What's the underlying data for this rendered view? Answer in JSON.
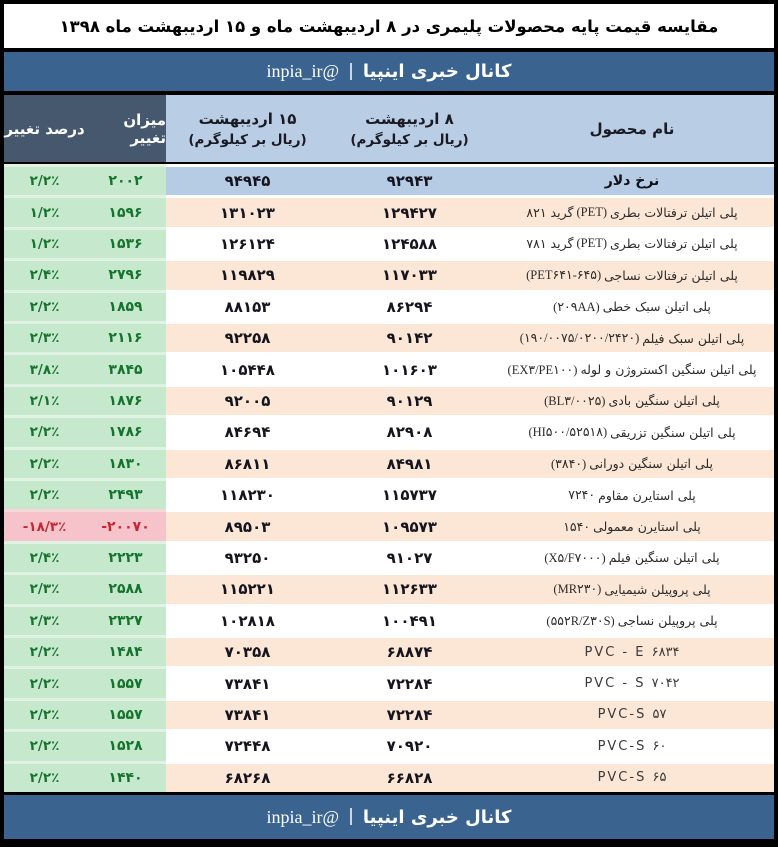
{
  "title": "مقایسه قیمت پایه محصولات پلیمری در ۸ اردیبهشت ماه و ۱۵ اردیبهشت ماه ۱۳۹۸",
  "banner": {
    "channel_fa": "کانال خبری اینپیا",
    "divider": "|",
    "handle": "@inpia_ir"
  },
  "columns": {
    "product": "نام محصول",
    "date8": "۸ اردیبهشت",
    "date15": "۱۵ اردیبهشت",
    "unit": "(ریال بر کیلوگرم)",
    "amount_change": "میزان تغییر",
    "percent_change": "درصد تغییر"
  },
  "colors": {
    "banner_blue": "#3a648f",
    "header_dark": "#46586e",
    "header_light_blue": "#b9cde5",
    "dollar_row_blue": "#b6cbe4",
    "row_peach": "#fce6d5",
    "positive_bg": "#c6e9ce",
    "positive_text": "#15732e",
    "negative_bg": "#f5c3c9",
    "negative_text": "#c42833"
  },
  "rows": [
    {
      "name_fa": "نرخ دلار",
      "code": "",
      "tail": "",
      "v8": "۹۲۹۴۳",
      "v15": "۹۴۹۴۵",
      "chg": "۲۰۰۲",
      "pct": "۲/۲٪",
      "dollar": true
    },
    {
      "name_fa": "پلی اتیلن ترفتالات بطری",
      "code": "(PET)",
      "tail": "گرید ۸۲۱",
      "v8": "۱۲۹۴۲۷",
      "v15": "۱۳۱۰۲۳",
      "chg": "۱۵۹۶",
      "pct": "۱/۲٪"
    },
    {
      "name_fa": "پلی اتیلن ترفتالات بطری",
      "code": "(PET)",
      "tail": "گرید ۷۸۱",
      "v8": "۱۲۴۵۸۸",
      "v15": "۱۲۶۱۲۴",
      "chg": "۱۵۳۶",
      "pct": "۱/۲٪"
    },
    {
      "name_fa": "پلی اتیلن ترفتالات نساجی",
      "code": "(PET۶۴۱-۶۴۵)",
      "tail": "",
      "v8": "۱۱۷۰۳۳",
      "v15": "۱۱۹۸۲۹",
      "chg": "۲۷۹۶",
      "pct": "۲/۴٪"
    },
    {
      "name_fa": "پلی اتیلن سبک خطی",
      "code": "(۲۰۹AA)",
      "tail": "",
      "v8": "۸۶۲۹۴",
      "v15": "۸۸۱۵۳",
      "chg": "۱۸۵۹",
      "pct": "۲/۲٪"
    },
    {
      "name_fa": "پلی اتیلن سبک فیلم",
      "code": "(۱۹۰/۰۰۷۵/۰۲۰۰/۲۴۲۰)",
      "tail": "",
      "v8": "۹۰۱۴۲",
      "v15": "۹۲۲۵۸",
      "chg": "۲۱۱۶",
      "pct": "۲/۳٪"
    },
    {
      "name_fa": "پلی اتیلن سنگین اکستروژن و لوله",
      "code": "(EX۳/PE۱۰۰)",
      "tail": "",
      "v8": "۱۰۱۶۰۳",
      "v15": "۱۰۵۴۴۸",
      "chg": "۳۸۴۵",
      "pct": "۳/۸٪"
    },
    {
      "name_fa": "پلی اتیلن سنگین بادی",
      "code": "(BL۳/۰۰۲۵)",
      "tail": "",
      "v8": "۹۰۱۲۹",
      "v15": "۹۲۰۰۵",
      "chg": "۱۸۷۶",
      "pct": "۲/۱٪"
    },
    {
      "name_fa": "پلی اتیلن سنگین تزریقی",
      "code": "(HI۵۰۰/۵۲۵۱۸)",
      "tail": "",
      "v8": "۸۲۹۰۸",
      "v15": "۸۴۶۹۴",
      "chg": "۱۷۸۶",
      "pct": "۲/۲٪"
    },
    {
      "name_fa": "پلی اتیلن سنگین دورانی",
      "code": "(۳۸۴۰)",
      "tail": "",
      "v8": "۸۴۹۸۱",
      "v15": "۸۶۸۱۱",
      "chg": "۱۸۳۰",
      "pct": "۲/۲٪"
    },
    {
      "name_fa": "پلی استایرن مقاوم",
      "code": "۷۲۴۰",
      "tail": "",
      "v8": "۱۱۵۷۳۷",
      "v15": "۱۱۸۲۳۰",
      "chg": "۲۴۹۳",
      "pct": "۲/۲٪"
    },
    {
      "name_fa": "پلی استایرن معمولی",
      "code": "۱۵۴۰",
      "tail": "",
      "v8": "۱۰۹۵۷۳",
      "v15": "۸۹۵۰۳",
      "chg": "-۲۰۰۷۰",
      "pct": "-۱۸/۳٪",
      "negative": true
    },
    {
      "name_fa": "پلی اتیلن سنگین فیلم",
      "code": "(X۵/F۷۰۰۰)",
      "tail": "",
      "v8": "۹۱۰۲۷",
      "v15": "۹۳۲۵۰",
      "chg": "۲۲۲۳",
      "pct": "۲/۴٪"
    },
    {
      "name_fa": "پلی پروپیلن شیمیایی",
      "code": "(MR۲۳۰)",
      "tail": "",
      "v8": "۱۱۲۶۳۳",
      "v15": "۱۱۵۲۲۱",
      "chg": "۲۵۸۸",
      "pct": "۲/۳٪"
    },
    {
      "name_fa": "پلی پروپیلن نساجی",
      "code": "(۵۵۲R/Z۳۰S)",
      "tail": "",
      "v8": "۱۰۰۴۹۱",
      "v15": "۱۰۲۸۱۸",
      "chg": "۲۳۲۷",
      "pct": "۲/۳٪"
    },
    {
      "name_fa": "",
      "code": "PVC - E ۶۸۳۴",
      "tail": "",
      "pvc": true,
      "v8": "۶۸۸۷۴",
      "v15": "۷۰۳۵۸",
      "chg": "۱۴۸۴",
      "pct": "۲/۲٪"
    },
    {
      "name_fa": "",
      "code": "PVC - S ۷۰۴۲",
      "tail": "",
      "pvc": true,
      "v8": "۷۲۲۸۴",
      "v15": "۷۳۸۴۱",
      "chg": "۱۵۵۷",
      "pct": "۲/۲٪"
    },
    {
      "name_fa": "",
      "code": "PVC-S ۵۷",
      "tail": "",
      "pvc": true,
      "v8": "۷۲۲۸۴",
      "v15": "۷۳۸۴۱",
      "chg": "۱۵۵۷",
      "pct": "۲/۲٪"
    },
    {
      "name_fa": "",
      "code": "PVC-S ۶۰",
      "tail": "",
      "pvc": true,
      "v8": "۷۰۹۲۰",
      "v15": "۷۲۴۴۸",
      "chg": "۱۵۲۸",
      "pct": "۲/۲٪"
    },
    {
      "name_fa": "",
      "code": "PVC-S ۶۵",
      "tail": "",
      "pvc": true,
      "v8": "۶۶۸۲۸",
      "v15": "۶۸۲۶۸",
      "chg": "۱۴۴۰",
      "pct": "۲/۲٪"
    }
  ],
  "chart_data": {
    "type": "table",
    "title": "مقایسه قیمت پایه محصولات پلیمری در ۸ اردیبهشت ماه و ۱۵ اردیبهشت ماه ۱۳۹۸",
    "columns": [
      "نام محصول",
      "۸ اردیبهشت (ریال بر کیلوگرم)",
      "۱۵ اردیبهشت (ریال بر کیلوگرم)",
      "میزان تغییر",
      "درصد تغییر"
    ],
    "rows": [
      [
        "نرخ دلار",
        92943,
        94945,
        2002,
        2.2
      ],
      [
        "پلی اتیلن ترفتالات بطری (PET) گرید ۸۲۱",
        129427,
        131023,
        1596,
        1.2
      ],
      [
        "پلی اتیلن ترفتالات بطری (PET) گرید ۷۸۱",
        124588,
        126124,
        1536,
        1.2
      ],
      [
        "پلی اتیلن ترفتالات نساجی (PET641-645)",
        117033,
        119829,
        2796,
        2.4
      ],
      [
        "پلی اتیلن سبک خطی (209AA)",
        86294,
        88153,
        1859,
        2.2
      ],
      [
        "پلی اتیلن سبک فیلم (190/0075/0200/2420)",
        90142,
        92258,
        2116,
        2.3
      ],
      [
        "پلی اتیلن سنگین اکستروژن و لوله (EX3/PE100)",
        101603,
        105448,
        3845,
        3.8
      ],
      [
        "پلی اتیلن سنگین بادی (BL3/0025)",
        90129,
        92005,
        1876,
        2.1
      ],
      [
        "پلی اتیلن سنگین تزریقی (HI500/52518)",
        82908,
        84694,
        1786,
        2.2
      ],
      [
        "پلی اتیلن سنگین دورانی (3840)",
        84981,
        86811,
        1830,
        2.2
      ],
      [
        "پلی استایرن مقاوم 7240",
        115737,
        118230,
        2493,
        2.2
      ],
      [
        "پلی استایرن معمولی 1540",
        109573,
        89503,
        -20070,
        -18.3
      ],
      [
        "پلی اتیلن سنگین فیلم (X5/F7000)",
        91027,
        93250,
        2223,
        2.4
      ],
      [
        "پلی پروپیلن شیمیایی (MR230)",
        112633,
        115221,
        2588,
        2.3
      ],
      [
        "پلی پروپیلن نساجی (552R/Z30S)",
        100491,
        102818,
        2327,
        2.3
      ],
      [
        "PVC - E 6834",
        68874,
        70358,
        1484,
        2.2
      ],
      [
        "PVC - S 7042",
        72284,
        73841,
        1557,
        2.2
      ],
      [
        "PVC-S 57",
        72284,
        73841,
        1557,
        2.2
      ],
      [
        "PVC-S 60",
        70920,
        72448,
        1528,
        2.2
      ],
      [
        "PVC-S 65",
        66828,
        68268,
        1440,
        2.2
      ]
    ]
  }
}
